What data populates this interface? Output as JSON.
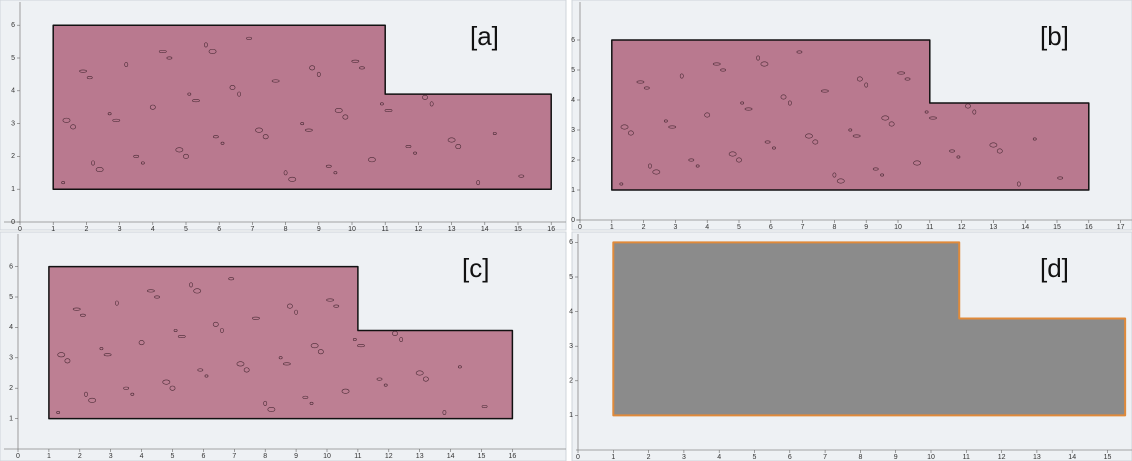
{
  "panels": [
    {
      "label": "[a]",
      "xticks": [
        0,
        1,
        2,
        3,
        4,
        5,
        6,
        7,
        8,
        9,
        10,
        11,
        12,
        13,
        14,
        15,
        16
      ],
      "yticks": [
        0,
        1,
        2,
        3,
        4,
        5,
        6
      ]
    },
    {
      "label": "[b]",
      "xticks": [
        0,
        1,
        2,
        3,
        4,
        5,
        6,
        7,
        8,
        9,
        10,
        11,
        12,
        13,
        14,
        15,
        16,
        17
      ],
      "yticks": [
        0,
        1,
        2,
        3,
        4,
        5,
        6
      ]
    },
    {
      "label": "[c]",
      "xticks": [
        0,
        1,
        2,
        3,
        4,
        5,
        6,
        7,
        8,
        9,
        10,
        11,
        12,
        13,
        14,
        15,
        16
      ],
      "yticks": [
        1,
        2,
        3,
        4,
        5,
        6
      ]
    },
    {
      "label": "[d]",
      "xticks": [
        0,
        1,
        2,
        3,
        4,
        5,
        6,
        7,
        8,
        9,
        10,
        11,
        12,
        13,
        14,
        15
      ],
      "yticks": [
        1,
        2,
        3,
        4,
        5,
        6
      ]
    }
  ]
}
